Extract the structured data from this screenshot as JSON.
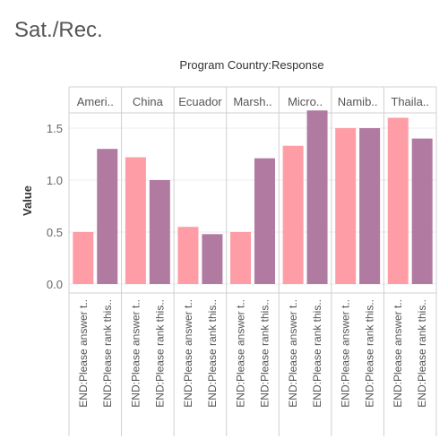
{
  "title": "Sat./Rec.",
  "chart_data": {
    "type": "bar",
    "title": "Sat./Rec.",
    "column_header": "Program Country:Response",
    "ylabel": "Value",
    "ylim": [
      0,
      1.75
    ],
    "yticks": [
      0.0,
      0.5,
      1.0,
      1.5
    ],
    "y_tick_labels": [
      "0.0",
      "0.5",
      "1.0",
      "1.5"
    ],
    "grid": true,
    "legend": "none",
    "categories": [
      "END:Please answer t..",
      "END:Please rank this.."
    ],
    "category_colors": [
      "#ff9da7",
      "#b07aa1"
    ],
    "groups": [
      {
        "label": "Ameri..",
        "values": [
          0.5,
          1.3
        ]
      },
      {
        "label": "China",
        "values": [
          1.22,
          1.0
        ]
      },
      {
        "label": "Ecuador",
        "values": [
          0.55,
          0.48
        ]
      },
      {
        "label": "Marsh..",
        "values": [
          0.5,
          1.21
        ]
      },
      {
        "label": "Micro..",
        "values": [
          1.33,
          1.67
        ]
      },
      {
        "label": "Namib..",
        "values": [
          1.5,
          1.5
        ]
      },
      {
        "label": "Thaila..",
        "values": [
          1.6,
          1.4
        ]
      }
    ]
  }
}
